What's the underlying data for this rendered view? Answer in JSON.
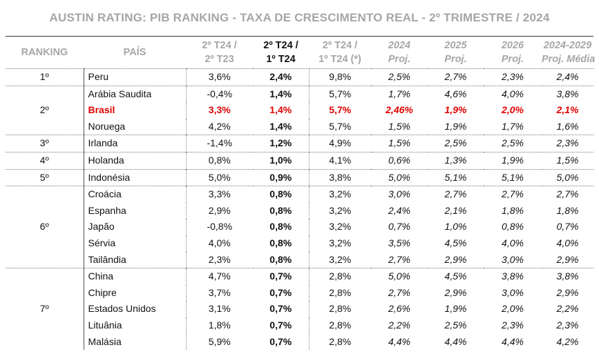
{
  "title": "AUSTIN RATING: PIB RANKING - TAXA DE CRESCIMENTO REAL - 2º TRIMESTRE / 2024",
  "colors": {
    "header_gray": "#a6a6a6",
    "highlight_red": "#e00000"
  },
  "headers": {
    "ranking": "RANKING",
    "pais": "PAÍS",
    "c1_a": "2º T24 /",
    "c1_b": "2º T23",
    "c2_a": "2º T24 /",
    "c2_b": "1º T24",
    "c3_a": "2º T24 /",
    "c3_b": "1º T24 (*)",
    "c4_a": "2024",
    "c4_b": "Proj.",
    "c5_a": "2025",
    "c5_b": "Proj.",
    "c6_a": "2026",
    "c6_b": "Proj.",
    "c7_a": "2024-2029",
    "c7_b": "Proj. Média"
  },
  "groups": [
    {
      "rank": "1º",
      "rows": [
        {
          "pais": "Peru",
          "v": [
            "3,6%",
            "2,4%",
            "9,8%",
            "2,5%",
            "2,7%",
            "2,3%",
            "2,4%"
          ]
        }
      ]
    },
    {
      "rank": "2º",
      "rows": [
        {
          "pais": "Arábia Saudita",
          "v": [
            "-0,4%",
            "1,4%",
            "5,7%",
            "1,7%",
            "4,6%",
            "4,0%",
            "3,8%"
          ]
        },
        {
          "pais": "Brasil",
          "highlight": true,
          "v": [
            "3,3%",
            "1,4%",
            "5,7%",
            "2,46%",
            "1,9%",
            "2,0%",
            "2,1%"
          ]
        },
        {
          "pais": "Noruega",
          "v": [
            "4,2%",
            "1,4%",
            "5,7%",
            "1,5%",
            "1,9%",
            "1,7%",
            "1,6%"
          ]
        }
      ]
    },
    {
      "rank": "3º",
      "rows": [
        {
          "pais": "Irlanda",
          "v": [
            "-1,4%",
            "1,2%",
            "4,9%",
            "1,5%",
            "2,5%",
            "2,5%",
            "2,3%"
          ]
        }
      ]
    },
    {
      "rank": "4º",
      "rows": [
        {
          "pais": "Holanda",
          "v": [
            "0,8%",
            "1,0%",
            "4,1%",
            "0,6%",
            "1,3%",
            "1,9%",
            "1,5%"
          ]
        }
      ]
    },
    {
      "rank": "5º",
      "rows": [
        {
          "pais": "Indonésia",
          "v": [
            "5,0%",
            "0,9%",
            "3,8%",
            "5,0%",
            "5,1%",
            "5,1%",
            "5,0%"
          ]
        }
      ]
    },
    {
      "rank": "6º",
      "rows": [
        {
          "pais": "Croácia",
          "v": [
            "3,3%",
            "0,8%",
            "3,2%",
            "3,0%",
            "2,7%",
            "2,7%",
            "2,7%"
          ]
        },
        {
          "pais": "Espanha",
          "v": [
            "2,9%",
            "0,8%",
            "3,2%",
            "2,4%",
            "2,1%",
            "1,8%",
            "1,8%"
          ]
        },
        {
          "pais": "Japão",
          "v": [
            "-0,8%",
            "0,8%",
            "3,2%",
            "0,7%",
            "1,0%",
            "0,8%",
            "0,7%"
          ]
        },
        {
          "pais": "Sérvia",
          "v": [
            "4,0%",
            "0,8%",
            "3,2%",
            "3,5%",
            "4,5%",
            "4,0%",
            "4,0%"
          ]
        },
        {
          "pais": "Tailândia",
          "v": [
            "2,3%",
            "0,8%",
            "3,2%",
            "2,7%",
            "2,9%",
            "3,0%",
            "2,9%"
          ]
        }
      ]
    },
    {
      "rank": "7º",
      "rows": [
        {
          "pais": "China",
          "v": [
            "4,7%",
            "0,7%",
            "2,8%",
            "5,0%",
            "4,5%",
            "3,8%",
            "3,8%"
          ]
        },
        {
          "pais": "Chipre",
          "v": [
            "3,7%",
            "0,7%",
            "2,8%",
            "2,7%",
            "2,9%",
            "3,0%",
            "2,9%"
          ]
        },
        {
          "pais": "Estados Unidos",
          "v": [
            "3,1%",
            "0,7%",
            "2,8%",
            "2,6%",
            "1,9%",
            "2,0%",
            "2,2%"
          ]
        },
        {
          "pais": "Lituânia",
          "v": [
            "1,8%",
            "0,7%",
            "2,8%",
            "2,2%",
            "2,5%",
            "2,3%",
            "2,3%"
          ]
        },
        {
          "pais": "Malásia",
          "v": [
            "5,9%",
            "0,7%",
            "2,8%",
            "4,4%",
            "4,4%",
            "4,4%",
            "4,2%"
          ]
        }
      ]
    }
  ]
}
